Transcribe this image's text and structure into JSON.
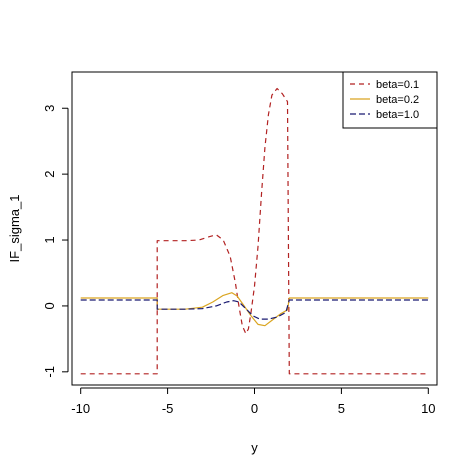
{
  "chart_data": {
    "type": "line",
    "xlabel": "y",
    "ylabel": "IF_sigma_1",
    "xlim": [
      -10.5,
      10.5
    ],
    "ylim": [
      -1.2,
      3.55
    ],
    "x_ticks": [
      -10,
      -5,
      0,
      5,
      10
    ],
    "x_tick_labels": [
      "-10",
      "-5",
      "0",
      "5",
      "10"
    ],
    "y_ticks": [
      -1,
      0,
      1,
      2,
      3
    ],
    "y_tick_labels": [
      "-1",
      "0",
      "1",
      "2",
      "3"
    ],
    "grid": false,
    "legend_position": "top-right",
    "series": [
      {
        "name": "beta=0.1",
        "color": "#B22222",
        "dash": "5,4",
        "points": [
          [
            -10,
            -1.03
          ],
          [
            -5.6,
            -1.03
          ],
          [
            -5.6,
            0.99
          ],
          [
            -4,
            0.99
          ],
          [
            -3.2,
            1.0
          ],
          [
            -2.6,
            1.05
          ],
          [
            -2.2,
            1.08
          ],
          [
            -1.8,
            1.0
          ],
          [
            -1.4,
            0.75
          ],
          [
            -1.1,
            0.35
          ],
          [
            -0.9,
            0.0
          ],
          [
            -0.7,
            -0.3
          ],
          [
            -0.5,
            -0.42
          ],
          [
            -0.35,
            -0.35
          ],
          [
            -0.2,
            -0.1
          ],
          [
            0.0,
            0.3
          ],
          [
            0.2,
            0.9
          ],
          [
            0.4,
            1.7
          ],
          [
            0.6,
            2.4
          ],
          [
            0.8,
            2.9
          ],
          [
            1.0,
            3.2
          ],
          [
            1.3,
            3.3
          ],
          [
            1.6,
            3.22
          ],
          [
            1.9,
            3.1
          ],
          [
            2.0,
            -1.03
          ],
          [
            10,
            -1.03
          ]
        ]
      },
      {
        "name": "beta=0.2",
        "color": "#DAA520",
        "dash": "",
        "points": [
          [
            -10,
            0.12
          ],
          [
            -5.6,
            0.12
          ],
          [
            -5.6,
            -0.05
          ],
          [
            -4.0,
            -0.05
          ],
          [
            -3.0,
            -0.02
          ],
          [
            -2.4,
            0.06
          ],
          [
            -1.8,
            0.16
          ],
          [
            -1.3,
            0.2
          ],
          [
            -1.0,
            0.15
          ],
          [
            -0.6,
            0.0
          ],
          [
            -0.2,
            -0.15
          ],
          [
            0.2,
            -0.28
          ],
          [
            0.6,
            -0.3
          ],
          [
            1.0,
            -0.22
          ],
          [
            1.5,
            -0.12
          ],
          [
            1.9,
            -0.06
          ],
          [
            2.0,
            0.12
          ],
          [
            10,
            0.12
          ]
        ]
      },
      {
        "name": "beta=1.0",
        "color": "#191970",
        "dash": "6,3",
        "points": [
          [
            -10,
            0.09
          ],
          [
            -5.6,
            0.09
          ],
          [
            -5.6,
            -0.05
          ],
          [
            -4.0,
            -0.05
          ],
          [
            -3.0,
            -0.04
          ],
          [
            -2.2,
            0.0
          ],
          [
            -1.6,
            0.06
          ],
          [
            -1.2,
            0.08
          ],
          [
            -0.9,
            0.06
          ],
          [
            -0.5,
            -0.04
          ],
          [
            -0.1,
            -0.15
          ],
          [
            0.3,
            -0.2
          ],
          [
            0.8,
            -0.2
          ],
          [
            1.3,
            -0.17
          ],
          [
            1.8,
            -0.1
          ],
          [
            2.0,
            0.09
          ],
          [
            10,
            0.09
          ]
        ]
      }
    ]
  }
}
